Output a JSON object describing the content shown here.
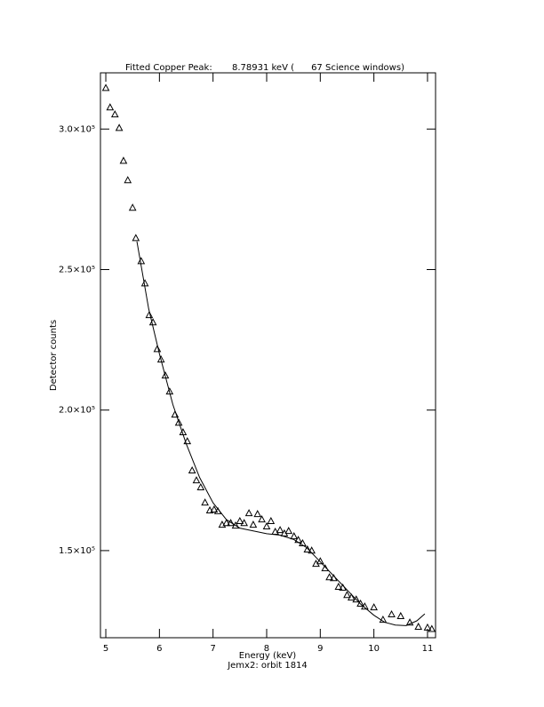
{
  "chart_data": {
    "type": "scatter",
    "title": "Fitted Copper Peak:       8.78931 keV (      67 Science windows)",
    "xlabel": "Energy (keV)",
    "subtitle": "Jemx2: orbit 1814",
    "ylabel": "Detector counts",
    "xlim": [
      4.9,
      11.15
    ],
    "ylim": [
      119000,
      320000
    ],
    "xticks": [
      5,
      6,
      7,
      8,
      9,
      10,
      11
    ],
    "yticks": [
      {
        "value": 150000,
        "label": "1.5×10⁵"
      },
      {
        "value": 200000,
        "label": "2.0×10⁵"
      },
      {
        "value": 250000,
        "label": "2.5×10⁵"
      },
      {
        "value": 300000,
        "label": "3.0×10⁵"
      }
    ],
    "color": "#000000",
    "points": {
      "x": [
        5.0,
        5.08,
        5.17,
        5.25,
        5.33,
        5.41,
        5.5,
        5.56,
        5.66,
        5.73,
        5.81,
        5.88,
        5.96,
        6.03,
        6.11,
        6.19,
        6.29,
        6.36,
        6.44,
        6.52,
        6.61,
        6.69,
        6.77,
        6.85,
        6.94,
        7.02,
        7.09,
        7.17,
        7.25,
        7.33,
        7.42,
        7.5,
        7.58,
        7.67,
        7.75,
        7.83,
        7.91,
        8.0,
        8.08,
        8.16,
        8.25,
        8.33,
        8.41,
        8.51,
        8.59,
        8.67,
        8.76,
        8.84,
        8.92,
        9.0,
        9.09,
        9.17,
        9.25,
        9.34,
        9.42,
        9.5,
        9.58,
        9.67,
        9.75,
        9.83,
        10.0,
        10.17,
        10.33,
        10.5,
        10.67,
        10.83,
        11.0,
        11.08
      ],
      "values": [
        314500,
        307600,
        305100,
        300300,
        288600,
        281700,
        271900,
        261100,
        252900,
        245000,
        233700,
        231100,
        221600,
        217900,
        212200,
        206500,
        198300,
        195400,
        192000,
        188800,
        178400,
        174900,
        172400,
        167000,
        164200,
        164500,
        163900,
        159100,
        159700,
        159700,
        158800,
        160400,
        159700,
        163200,
        159100,
        162900,
        161000,
        158500,
        160400,
        156600,
        157200,
        156000,
        156900,
        155000,
        153700,
        152500,
        150300,
        149900,
        145200,
        146100,
        143600,
        140400,
        140100,
        137000,
        136700,
        134100,
        133200,
        132500,
        131000,
        130000,
        129700,
        125300,
        127200,
        126600,
        124300,
        122800,
        122500,
        122000
      ]
    },
    "fit": {
      "x": [
        5.58,
        5.8,
        6.0,
        6.25,
        6.5,
        6.75,
        7.0,
        7.25,
        7.5,
        7.75,
        8.0,
        8.25,
        8.5,
        8.75,
        9.0,
        9.25,
        9.5,
        9.75,
        10.0,
        10.2,
        10.4,
        10.6,
        10.8,
        10.95
      ],
      "values": [
        260000,
        236000,
        220000,
        202000,
        188000,
        176000,
        167000,
        161000,
        158000,
        157000,
        156000,
        155500,
        154000,
        151000,
        146000,
        141000,
        136000,
        131000,
        127000,
        124500,
        123500,
        123300,
        125000,
        127500
      ]
    }
  }
}
